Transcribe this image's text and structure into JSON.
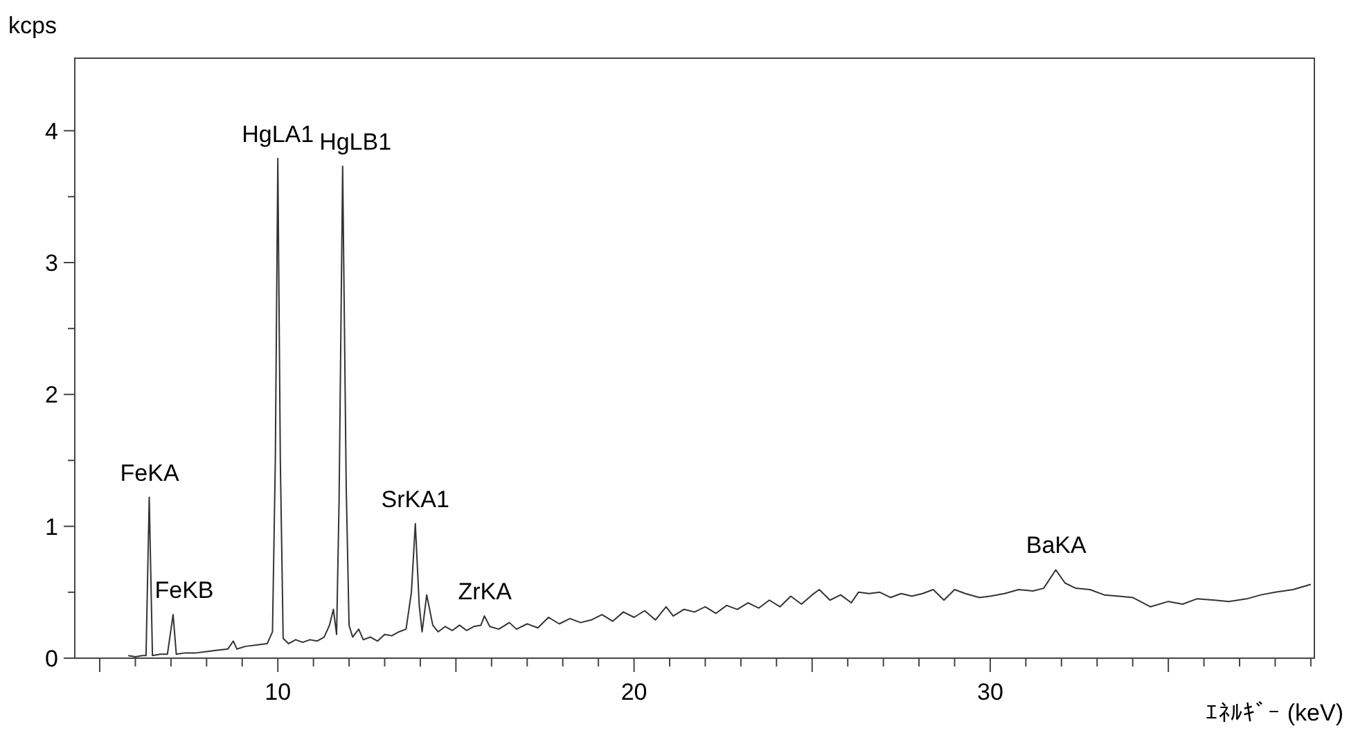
{
  "chart_data": {
    "type": "line",
    "xlabel": "ｴﾈﾙｷﾞｰ (keV)",
    "ylabel": "kcps",
    "xlim": [
      4.3,
      39.1
    ],
    "ylim": [
      0,
      4.55
    ],
    "xticks": [
      {
        "value": 5,
        "label": null
      },
      {
        "value": 6,
        "label": null
      },
      {
        "value": 7,
        "label": null
      },
      {
        "value": 8,
        "label": null
      },
      {
        "value": 9,
        "label": null
      },
      10,
      {
        "value": 11,
        "label": null
      },
      {
        "value": 12,
        "label": null
      },
      {
        "value": 13,
        "label": null
      },
      {
        "value": 14,
        "label": null
      },
      {
        "value": 15,
        "label": null
      },
      {
        "value": 16,
        "label": null
      },
      {
        "value": 17,
        "label": null
      },
      {
        "value": 18,
        "label": null
      },
      {
        "value": 19,
        "label": null
      },
      20,
      {
        "value": 21,
        "label": null
      },
      {
        "value": 22,
        "label": null
      },
      {
        "value": 23,
        "label": null
      },
      {
        "value": 24,
        "label": null
      },
      {
        "value": 25,
        "label": null
      },
      {
        "value": 26,
        "label": null
      },
      {
        "value": 27,
        "label": null
      },
      {
        "value": 28,
        "label": null
      },
      {
        "value": 29,
        "label": null
      },
      30,
      {
        "value": 31,
        "label": null
      },
      {
        "value": 32,
        "label": null
      },
      {
        "value": 33,
        "label": null
      },
      {
        "value": 34,
        "label": null
      },
      {
        "value": 35,
        "label": null
      },
      {
        "value": 36,
        "label": null
      },
      {
        "value": 37,
        "label": null
      },
      {
        "value": 38,
        "label": null
      },
      {
        "value": 39,
        "label": null
      }
    ],
    "yticks": [
      0,
      {
        "value": 0.5,
        "label": null
      },
      1,
      {
        "value": 1.5,
        "label": null
      },
      2,
      {
        "value": 2.5,
        "label": null
      },
      3,
      {
        "value": 3.5,
        "label": null
      },
      4
    ],
    "grid": false,
    "marker": "none",
    "line_style": "solid",
    "series": [
      {
        "color": "#333333",
        "x": [
          5.8,
          6.0,
          6.2,
          6.3,
          6.39,
          6.48,
          6.7,
          6.9,
          7.06,
          7.15,
          7.4,
          7.7,
          8.0,
          8.3,
          8.6,
          8.75,
          8.85,
          9.1,
          9.4,
          9.7,
          9.85,
          9.93,
          10.0,
          10.07,
          10.15,
          10.3,
          10.5,
          10.7,
          10.9,
          11.1,
          11.3,
          11.45,
          11.56,
          11.65,
          11.72,
          11.82,
          11.92,
          12.0,
          12.1,
          12.27,
          12.4,
          12.6,
          12.8,
          13.0,
          13.2,
          13.4,
          13.6,
          13.75,
          13.86,
          13.97,
          14.05,
          14.18,
          14.35,
          14.5,
          14.7,
          14.9,
          15.1,
          15.3,
          15.5,
          15.7,
          15.8,
          15.95,
          16.2,
          16.5,
          16.7,
          17.0,
          17.3,
          17.6,
          17.9,
          18.2,
          18.5,
          18.8,
          19.1,
          19.4,
          19.7,
          20.0,
          20.3,
          20.6,
          20.9,
          21.1,
          21.4,
          21.7,
          22.0,
          22.3,
          22.6,
          22.9,
          23.2,
          23.5,
          23.8,
          24.1,
          24.4,
          24.7,
          25.0,
          25.2,
          25.5,
          25.8,
          26.1,
          26.3,
          26.6,
          26.9,
          27.2,
          27.5,
          27.8,
          28.1,
          28.4,
          28.7,
          29.0,
          29.3,
          29.7,
          30.0,
          30.4,
          30.8,
          31.2,
          31.5,
          31.84,
          32.1,
          32.4,
          32.8,
          33.2,
          33.6,
          34.0,
          34.5,
          35.0,
          35.4,
          35.8,
          36.3,
          36.7,
          37.2,
          37.6,
          38.0,
          38.5,
          39.0
        ],
        "values": [
          0.02,
          0.01,
          0.02,
          0.02,
          1.22,
          0.02,
          0.03,
          0.03,
          0.33,
          0.03,
          0.04,
          0.04,
          0.05,
          0.06,
          0.07,
          0.13,
          0.07,
          0.09,
          0.1,
          0.11,
          0.2,
          1.5,
          3.79,
          1.5,
          0.15,
          0.11,
          0.14,
          0.12,
          0.14,
          0.13,
          0.16,
          0.25,
          0.37,
          0.18,
          1.2,
          3.73,
          1.3,
          0.25,
          0.16,
          0.22,
          0.14,
          0.16,
          0.13,
          0.18,
          0.17,
          0.2,
          0.22,
          0.5,
          1.02,
          0.4,
          0.2,
          0.48,
          0.25,
          0.2,
          0.24,
          0.21,
          0.25,
          0.21,
          0.24,
          0.25,
          0.32,
          0.24,
          0.22,
          0.27,
          0.22,
          0.26,
          0.23,
          0.31,
          0.26,
          0.3,
          0.27,
          0.29,
          0.33,
          0.28,
          0.35,
          0.31,
          0.36,
          0.29,
          0.39,
          0.32,
          0.37,
          0.35,
          0.39,
          0.34,
          0.4,
          0.37,
          0.42,
          0.38,
          0.44,
          0.39,
          0.47,
          0.41,
          0.48,
          0.52,
          0.44,
          0.48,
          0.42,
          0.5,
          0.49,
          0.5,
          0.46,
          0.49,
          0.47,
          0.49,
          0.52,
          0.44,
          0.52,
          0.49,
          0.46,
          0.47,
          0.49,
          0.52,
          0.51,
          0.53,
          0.67,
          0.57,
          0.53,
          0.52,
          0.48,
          0.47,
          0.46,
          0.39,
          0.43,
          0.41,
          0.45,
          0.44,
          0.43,
          0.45,
          0.48,
          0.5,
          0.52,
          0.56
        ]
      }
    ],
    "annotations": [
      {
        "text": "FeKA",
        "x": 6.39,
        "y": 1.22
      },
      {
        "text": "FeKB",
        "x": 7.06,
        "y": 0.33
      },
      {
        "text": "HgLA1",
        "x": 10.0,
        "y": 3.79
      },
      {
        "text": "HgLB1",
        "x": 11.82,
        "y": 3.73
      },
      {
        "text": "SrKA1",
        "x": 13.86,
        "y": 1.02
      },
      {
        "text": "ZrKA",
        "x": 15.8,
        "y": 0.32
      },
      {
        "text": "BaKA",
        "x": 31.84,
        "y": 0.67
      }
    ]
  }
}
